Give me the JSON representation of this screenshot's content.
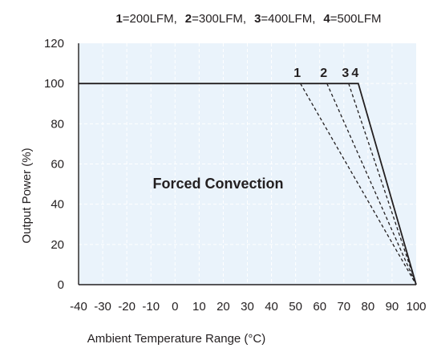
{
  "chart_data": {
    "type": "line",
    "legend": [
      {
        "key": "1",
        "text": "=200LFM"
      },
      {
        "key": "2",
        "text": "=300LFM"
      },
      {
        "key": "3",
        "text": "=400LFM"
      },
      {
        "key": "4",
        "text": "=500LFM"
      }
    ],
    "legend_separator": ",",
    "xlabel": "Ambient Temperature Range (°C)",
    "ylabel": "Output Power (%)",
    "xlim": [
      -40,
      100
    ],
    "ylim": [
      0,
      120
    ],
    "xticks": [
      "-40",
      "-30",
      "-20",
      "-10",
      "0",
      "10",
      "20",
      "30",
      "40",
      "50",
      "60",
      "70",
      "80",
      "90",
      "100"
    ],
    "yticks": [
      "0",
      "20",
      "40",
      "60",
      "80",
      "100",
      "120"
    ],
    "grid": true,
    "region_label": "Forced Convection",
    "series": [
      {
        "name": "1",
        "style": "dashed",
        "points": [
          [
            52,
            100
          ],
          [
            100,
            0
          ]
        ]
      },
      {
        "name": "2",
        "style": "dashed",
        "points": [
          [
            63,
            100
          ],
          [
            100,
            0
          ]
        ]
      },
      {
        "name": "3",
        "style": "dashed",
        "points": [
          [
            72,
            100
          ],
          [
            100,
            0
          ]
        ]
      },
      {
        "name": "4",
        "style": "solid",
        "points": [
          [
            -40,
            100
          ],
          [
            76,
            100
          ],
          [
            100,
            0
          ]
        ]
      }
    ],
    "colors": {
      "plot_background": "#eaf3fb",
      "grid": "#ffffff",
      "line": "#231f20"
    }
  }
}
